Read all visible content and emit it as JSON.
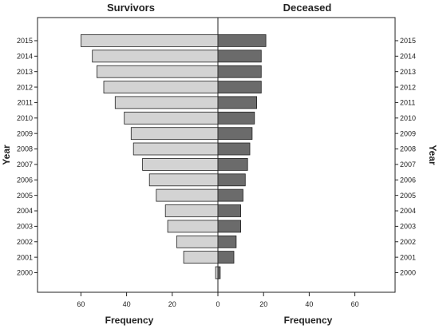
{
  "chart_data": {
    "type": "bar",
    "orientation": "horizontal",
    "layout": "back-to-back population pyramid",
    "y_axis_title": "Year",
    "categories": [
      "2000",
      "2001",
      "2002",
      "2003",
      "2004",
      "2005",
      "2006",
      "2007",
      "2008",
      "2009",
      "2010",
      "2011",
      "2012",
      "2013",
      "2014",
      "2015"
    ],
    "series": [
      {
        "name": "Survivors",
        "panel": "left",
        "x_axis_title": "Frequency",
        "color": "#d3d3d3",
        "values": [
          1,
          15,
          18,
          22,
          23,
          27,
          30,
          33,
          37,
          38,
          41,
          45,
          50,
          53,
          55,
          60
        ]
      },
      {
        "name": "Deceased",
        "panel": "right",
        "x_axis_title": "Frequency",
        "color": "#6b6b6b",
        "values": [
          1,
          7,
          8,
          10,
          10,
          11,
          12,
          13,
          14,
          15,
          16,
          17,
          19,
          19,
          19,
          21
        ]
      }
    ],
    "x_ticks": [
      "60",
      "40",
      "20",
      "0",
      "20",
      "40",
      "60"
    ],
    "xlim": [
      -70,
      70
    ],
    "grid": false,
    "legend": "none"
  }
}
